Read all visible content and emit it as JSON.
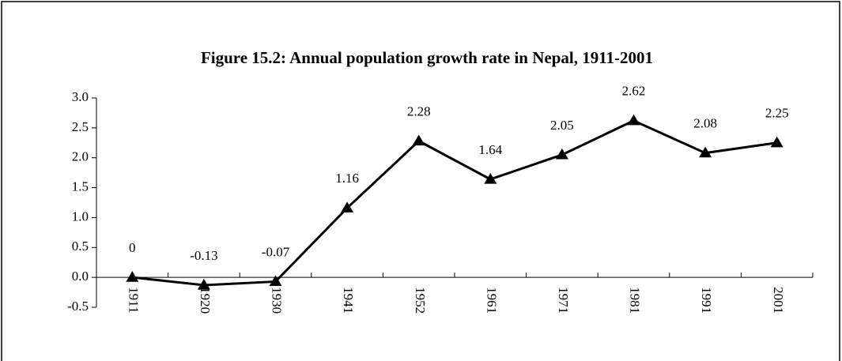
{
  "chart_data": {
    "type": "line",
    "title": "Figure 15.2:  Annual population growth rate in Nepal, 1911-2001",
    "categories": [
      "1911",
      "1920",
      "1930",
      "1941",
      "1952",
      "1961",
      "1971",
      "1981",
      "1991",
      "2001"
    ],
    "values": [
      0,
      -0.13,
      -0.07,
      1.16,
      2.28,
      1.64,
      2.05,
      2.62,
      2.08,
      2.25
    ],
    "color": "#000000",
    "ylim": [
      -0.5,
      3
    ],
    "yticks": [
      -0.5,
      {
        "value": 0,
        "label": "0.0"
      },
      0.5,
      {
        "value": 1,
        "label": "1.0"
      },
      1.5,
      {
        "value": 2,
        "label": "2.0"
      },
      2.5,
      {
        "value": 3,
        "label": "3.0"
      }
    ]
  }
}
